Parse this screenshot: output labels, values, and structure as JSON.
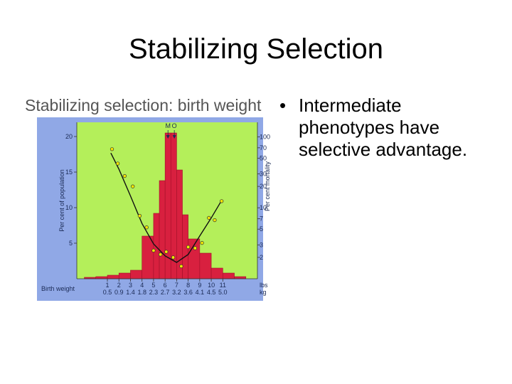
{
  "title": "Stabilizing Selection",
  "bullets": [
    "Intermediate phenotypes have selective advantage."
  ],
  "chart_data": {
    "type": "histogram",
    "title": "Stabilizing selection: birth weight",
    "xlabel": "Birth weight",
    "ylabel": "Per cent of population",
    "y2label": "Per cent mortality",
    "x_unit": "lbs",
    "kg_unit": "kg",
    "bins": [
      -1,
      0,
      1,
      2,
      3,
      4,
      5,
      5.5,
      6,
      6.5,
      7,
      7.5,
      8,
      9,
      10,
      11,
      12,
      13
    ],
    "values": [
      0.2,
      0.3,
      0.5,
      0.8,
      1.2,
      6.0,
      9.2,
      13.8,
      20.5,
      20.5,
      15.3,
      9.0,
      5.6,
      3.6,
      1.5,
      0.8,
      0.3
    ],
    "color": "#d8203f",
    "xlim": [
      -1.65,
      14
    ],
    "xticks": [
      1,
      2,
      3,
      4,
      5,
      6,
      7,
      8,
      9,
      10,
      11
    ],
    "kg_ticks": [
      0.5,
      0.9,
      1.4,
      1.8,
      2.3,
      2.7,
      3.2,
      3.6,
      4.1,
      4.5,
      {
        "value": 5,
        "label": "5.0"
      }
    ],
    "ylim": [
      0,
      22
    ],
    "yticks": [
      5,
      10,
      15,
      20
    ],
    "y2lim": [
      1,
      160
    ],
    "y2log": true,
    "y2ticks": [
      2,
      3,
      5,
      7,
      10,
      20,
      30,
      50,
      70,
      100
    ],
    "mortality_points": {
      "axis": "y2",
      "color": "#f2e600",
      "x": [
        1.4,
        1.9,
        2.5,
        3.2,
        3.8,
        4.4,
        5.0,
        5.6,
        6.1,
        6.7,
        7.4,
        8.0,
        8.6,
        9.2,
        9.8,
        10.3,
        10.9
      ],
      "values": [
        67,
        42,
        28,
        20,
        7.7,
        5.3,
        2.5,
        2.2,
        2.4,
        2.0,
        1.5,
        2.8,
        2.7,
        3.2,
        7.2,
        6.7,
        12.4
      ]
    },
    "mortality_curve": {
      "axis": "y2",
      "color": "#111111",
      "x": [
        1.3,
        2,
        3,
        4,
        5,
        6,
        7,
        8,
        9,
        10,
        10.9
      ],
      "values": [
        59,
        35,
        14.7,
        6,
        3.1,
        2.1,
        1.7,
        2.2,
        4,
        7.2,
        12.7
      ]
    },
    "annotations": [
      {
        "text": "M",
        "x": 6.25
      },
      {
        "text": "O",
        "x": 6.8
      }
    ]
  }
}
